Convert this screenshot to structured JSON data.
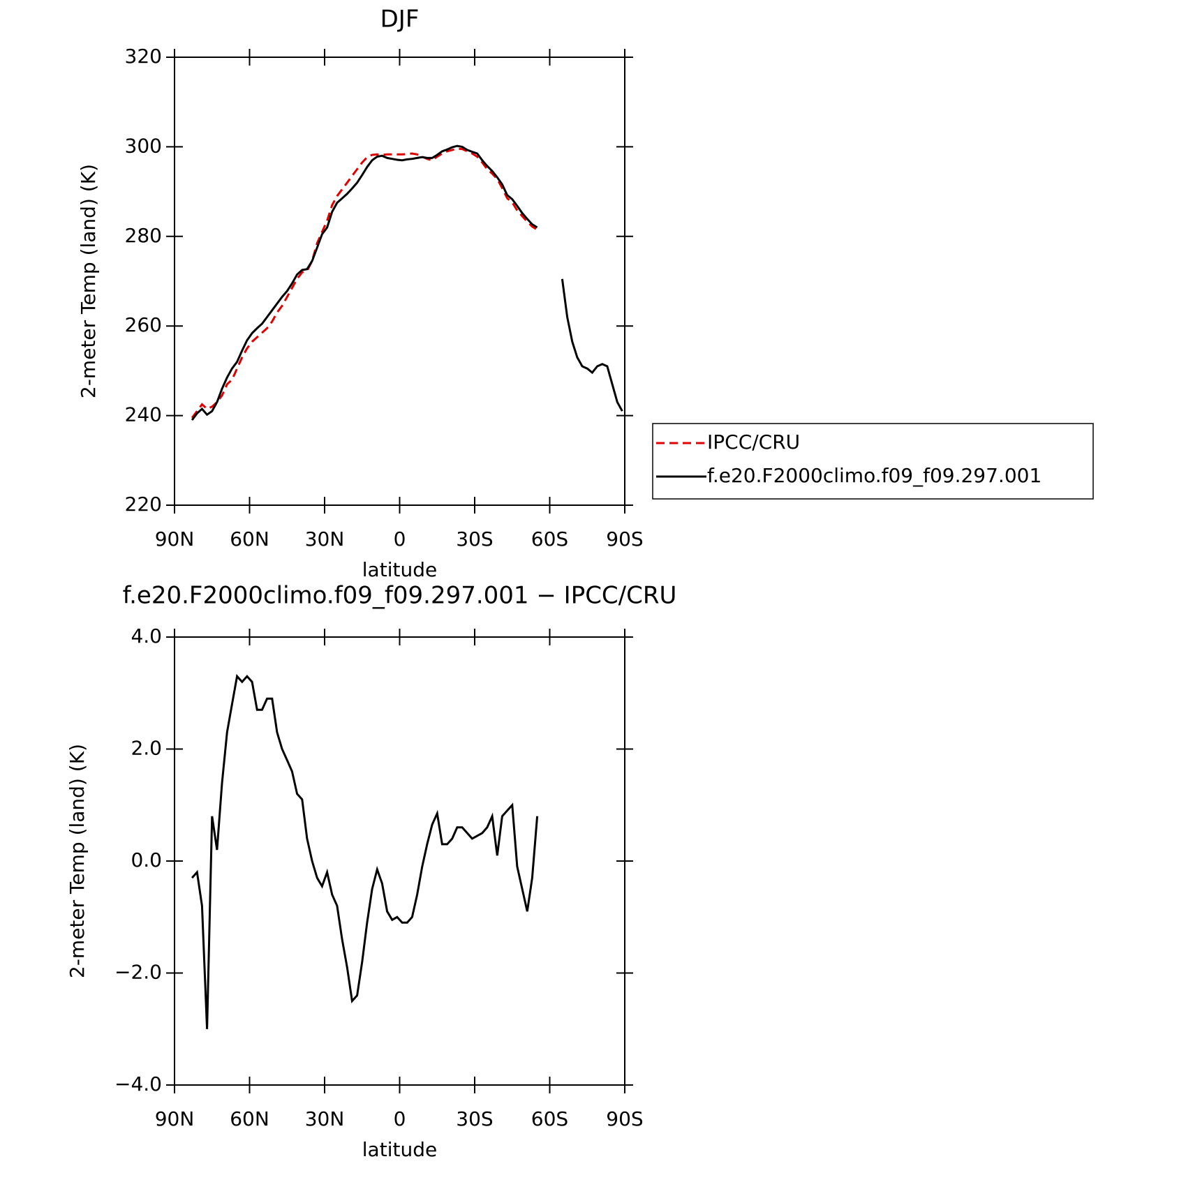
{
  "chart_data": [
    {
      "type": "line",
      "title": "DJF",
      "xlabel": "latitude",
      "ylabel": "2-meter Temp (land) (K)",
      "xlim": [
        90,
        -90
      ],
      "xticks": [
        {
          "value": 90,
          "label": "90N"
        },
        {
          "value": 60,
          "label": "60N"
        },
        {
          "value": 30,
          "label": "30N"
        },
        0,
        {
          "value": -30,
          "label": "30S"
        },
        {
          "value": -60,
          "label": "60S"
        },
        {
          "value": -90,
          "label": "90S"
        }
      ],
      "ylim": [
        220,
        320
      ],
      "yticks": [
        220,
        240,
        260,
        280,
        300,
        320
      ],
      "legend": "outside-right",
      "x": [
        83,
        81,
        79,
        77,
        75,
        73,
        71,
        69,
        67,
        65,
        63,
        61,
        59,
        57,
        55,
        53,
        51,
        49,
        47,
        45,
        43,
        41,
        39,
        37,
        35,
        33,
        31,
        29,
        27,
        25,
        23,
        21,
        19,
        17,
        15,
        13,
        11,
        9,
        7,
        5,
        3,
        1,
        -1,
        -3,
        -5,
        -7,
        -9,
        -11,
        -13,
        -15,
        -17,
        -19,
        -21,
        -23,
        -25,
        -27,
        -29,
        -31,
        -33,
        -35,
        -37,
        -39,
        -41,
        -43,
        -45,
        -47,
        -49,
        -51,
        -53,
        -55,
        -57,
        -59,
        -61,
        -63,
        -65,
        -67,
        -69,
        -71,
        -73,
        -75,
        -77,
        -79,
        -81,
        -83,
        -85,
        -87,
        -89
      ],
      "series": [
        {
          "name": "IPCC/CRU",
          "color": "#e00000",
          "dash": true,
          "values": [
            239.5,
            241,
            242.5,
            241.5,
            242,
            243,
            244.5,
            247,
            248,
            250.5,
            253,
            255,
            256.5,
            257.5,
            258.5,
            259.5,
            261,
            263,
            264.5,
            266.5,
            268.5,
            270.5,
            272,
            272.3,
            274.5,
            278.5,
            281,
            283.5,
            287,
            289,
            290.5,
            292,
            293.5,
            295,
            296.5,
            297.7,
            298.2,
            298.3,
            298.2,
            298.3,
            298.3,
            298.3,
            298.3,
            298.4,
            298.5,
            298.3,
            297.8,
            297.3,
            297,
            297.8,
            298.5,
            299,
            299.3,
            299.6,
            299.5,
            299,
            298.5,
            297.8,
            296.5,
            295,
            294,
            292.8,
            290.8,
            288.5,
            287.6,
            285.8,
            284.5,
            283.3,
            282.2,
            281.5,
            null,
            null,
            null,
            null,
            null,
            null,
            null,
            null,
            null,
            null,
            null,
            null,
            null,
            null,
            null,
            null,
            null
          ]
        },
        {
          "name": "f.e20.F2000climo.f09_f09.297.001",
          "color": "#000000",
          "dash": false,
          "values": [
            239,
            240.5,
            241.5,
            240.2,
            241,
            243,
            246,
            248.5,
            250.5,
            252,
            254.5,
            256.8,
            258.4,
            259.5,
            260.5,
            262,
            263.5,
            265,
            266.5,
            267.8,
            269.5,
            271.5,
            272.5,
            272.7,
            274.5,
            277.5,
            280.5,
            282,
            285.5,
            287.5,
            288.5,
            289.5,
            290.7,
            292,
            293.7,
            295.5,
            297,
            297.8,
            298,
            297.5,
            297.3,
            297.1,
            297,
            297.2,
            297.3,
            297.5,
            297.7,
            297.5,
            297.5,
            298.2,
            299,
            299.4,
            299.9,
            300.2,
            300,
            299.3,
            298.9,
            298.5,
            297,
            295.7,
            294.6,
            293.2,
            291.6,
            289.2,
            288.3,
            286.8,
            285.2,
            283.9,
            282.7,
            282,
            null,
            null,
            null,
            null,
            270.5,
            262,
            256.5,
            253,
            251,
            250.5,
            249.6,
            251,
            251.5,
            251,
            247,
            243,
            241
          ]
        }
      ]
    },
    {
      "type": "line",
      "title": "f.e20.F2000climo.f09_f09.297.001 − IPCC/CRU",
      "xlabel": "latitude",
      "ylabel": "2-meter Temp (land) (K)",
      "xlim": [
        90,
        -90
      ],
      "xticks": [
        {
          "value": 90,
          "label": "90N"
        },
        {
          "value": 60,
          "label": "60N"
        },
        {
          "value": 30,
          "label": "30N"
        },
        0,
        {
          "value": -30,
          "label": "30S"
        },
        {
          "value": -60,
          "label": "60S"
        },
        {
          "value": -90,
          "label": "90S"
        }
      ],
      "ylim": [
        -4,
        4
      ],
      "yticks": [
        {
          "value": -4,
          "label": "−4.0"
        },
        {
          "value": -2,
          "label": "−2.0"
        },
        {
          "value": 0,
          "label": "0.0"
        },
        {
          "value": 2,
          "label": "2.0"
        },
        {
          "value": 4,
          "label": "4.0"
        }
      ],
      "x": [
        83,
        81,
        79,
        77,
        75,
        73,
        71,
        69,
        67,
        65,
        63,
        61,
        59,
        57,
        55,
        53,
        51,
        49,
        47,
        45,
        43,
        41,
        39,
        37,
        35,
        33,
        31,
        29,
        27,
        25,
        23,
        21,
        19,
        17,
        15,
        13,
        11,
        9,
        7,
        5,
        3,
        1,
        -1,
        -3,
        -5,
        -7,
        -9,
        -11,
        -13,
        -15,
        -17,
        -19,
        -21,
        -23,
        -25,
        -27,
        -29,
        -31,
        -33,
        -35,
        -37,
        -39,
        -41,
        -43,
        -45,
        -47,
        -49,
        -51,
        -53,
        -55
      ],
      "series": [
        {
          "color": "#000000",
          "dash": false,
          "values": [
            -0.3,
            -0.2,
            -0.8,
            -3.0,
            0.8,
            0.2,
            1.4,
            2.3,
            2.8,
            3.3,
            3.2,
            3.3,
            3.2,
            2.7,
            2.7,
            2.9,
            2.9,
            2.3,
            2.0,
            1.8,
            1.6,
            1.2,
            1.1,
            0.4,
            0.0,
            -0.3,
            -0.45,
            -0.2,
            -0.6,
            -0.8,
            -1.4,
            -1.9,
            -2.5,
            -2.4,
            -1.8,
            -1.1,
            -0.5,
            -0.15,
            -0.4,
            -0.9,
            -1.05,
            -1.0,
            -1.1,
            -1.1,
            -1.0,
            -0.6,
            -0.1,
            0.3,
            0.65,
            0.85,
            0.3,
            0.3,
            0.4,
            0.6,
            0.6,
            0.5,
            0.4,
            0.45,
            0.5,
            0.6,
            0.8,
            0.1,
            0.8,
            0.9,
            1.0,
            -0.1,
            -0.5,
            -0.9,
            -0.3,
            0.8
          ]
        }
      ]
    }
  ]
}
